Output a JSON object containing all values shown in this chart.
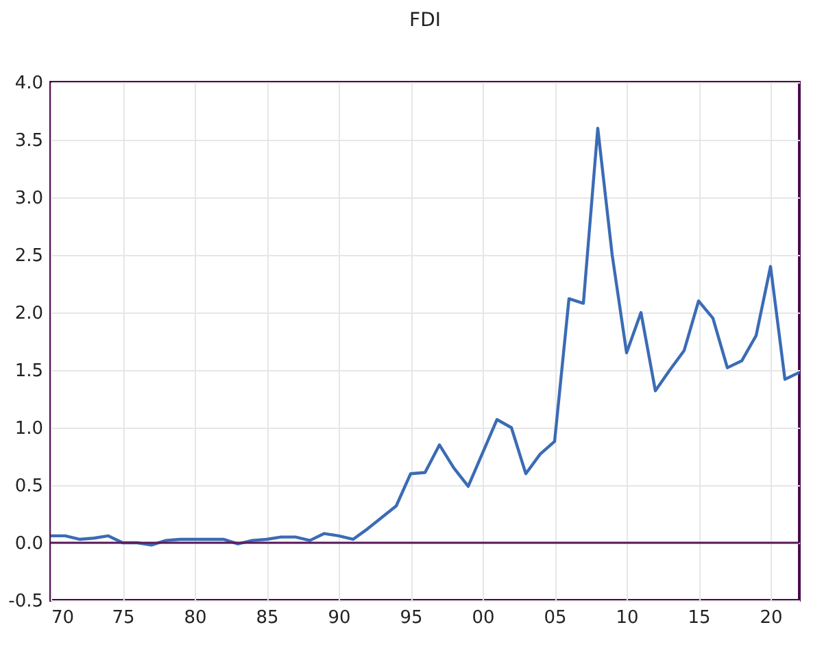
{
  "chart_data": {
    "type": "line",
    "title": "FDI",
    "x": [
      1970,
      1971,
      1972,
      1973,
      1974,
      1975,
      1976,
      1977,
      1978,
      1979,
      1980,
      1981,
      1982,
      1983,
      1984,
      1985,
      1986,
      1987,
      1988,
      1989,
      1990,
      1991,
      1992,
      1993,
      1994,
      1995,
      1996,
      1997,
      1998,
      1999,
      2000,
      2001,
      2002,
      2003,
      2004,
      2005,
      2006,
      2007,
      2008,
      2009,
      2010,
      2011,
      2012,
      2013,
      2014,
      2015,
      2016,
      2017,
      2018,
      2019,
      2020,
      2021,
      2022
    ],
    "series": [
      {
        "color": "#3b6bb5",
        "values": [
          0.06,
          0.06,
          0.03,
          0.04,
          0.06,
          0.0,
          0.0,
          -0.02,
          0.02,
          0.03,
          0.03,
          0.03,
          0.03,
          -0.01,
          0.02,
          0.03,
          0.05,
          0.05,
          0.02,
          0.08,
          0.06,
          0.03,
          0.12,
          0.22,
          0.32,
          0.6,
          0.61,
          0.85,
          0.65,
          0.49,
          0.78,
          1.07,
          1.0,
          0.6,
          0.77,
          0.88,
          2.12,
          2.08,
          3.6,
          2.5,
          1.65,
          2.0,
          1.32,
          1.5,
          1.67,
          2.1,
          1.95,
          1.52,
          1.58,
          1.8,
          2.4,
          1.42,
          1.48
        ]
      }
    ],
    "xlim": [
      1970,
      2022
    ],
    "xticks": [
      {
        "value": 1970,
        "label": "70"
      },
      {
        "value": 1975,
        "label": "75"
      },
      {
        "value": 1980,
        "label": "80"
      },
      {
        "value": 1985,
        "label": "85"
      },
      {
        "value": 1990,
        "label": "90"
      },
      {
        "value": 1995,
        "label": "95"
      },
      {
        "value": 2000,
        "label": "00"
      },
      {
        "value": 2005,
        "label": "05"
      },
      {
        "value": 2010,
        "label": "10"
      },
      {
        "value": 2015,
        "label": "15"
      },
      {
        "value": 2020,
        "label": "20"
      }
    ],
    "ylim": [
      -0.5,
      4.0
    ],
    "yticks": [
      {
        "value": -0.5,
        "label": "-0.5"
      },
      {
        "value": 0,
        "label": "0.0"
      },
      {
        "value": 0.5,
        "label": "0.5"
      },
      {
        "value": 1,
        "label": "1.0"
      },
      {
        "value": 1.5,
        "label": "1.5"
      },
      {
        "value": 2,
        "label": "2.0"
      },
      {
        "value": 2.5,
        "label": "2.5"
      },
      {
        "value": 3,
        "label": "3.0"
      },
      {
        "value": 3.5,
        "label": "3.5"
      },
      {
        "value": 4,
        "label": "4.0"
      }
    ],
    "ref_lines": [
      {
        "axis": "y",
        "value": 0,
        "color": "#5a1a5a"
      }
    ],
    "grid": true,
    "marker": "none",
    "line_style": "solid"
  }
}
